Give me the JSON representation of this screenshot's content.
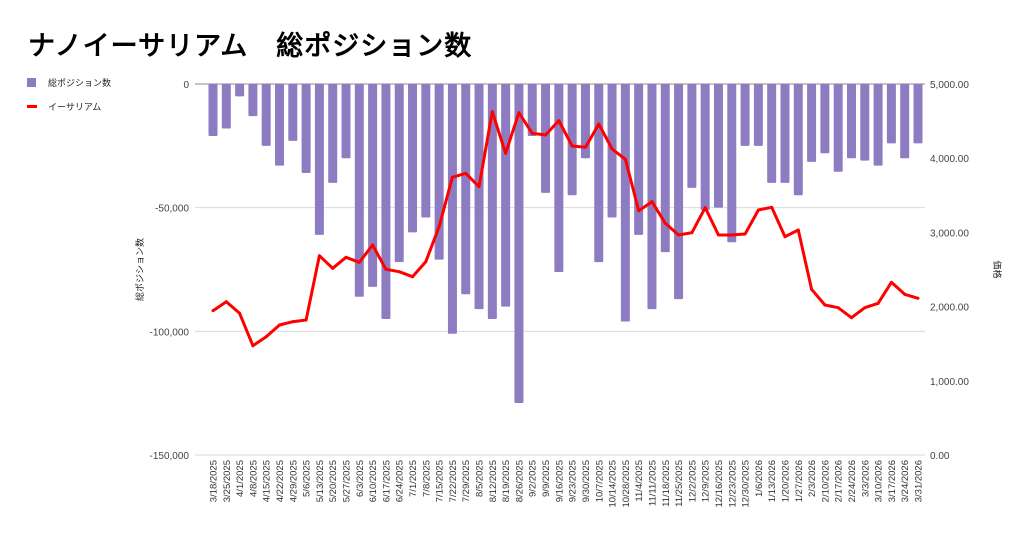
{
  "chart_data": {
    "type": "bar+line",
    "title": "ナノイーサリアム　総ポジション数",
    "xlabel": "",
    "ylabel": "総ポジション数",
    "y2label": "価格",
    "ylim": [
      -150000,
      0
    ],
    "y2lim": [
      0,
      5000
    ],
    "yticks": [
      "0",
      "-50,000",
      "-100,000",
      "-150,000"
    ],
    "y2ticks": [
      "5,000.00",
      "4,000.00",
      "3,000.00",
      "2,000.00",
      "1,000.00",
      "0.00"
    ],
    "legend_position": "left",
    "grid": true,
    "categories": [
      "3/18/2025",
      "3/25/2025",
      "4/1/2025",
      "4/8/2025",
      "4/15/2025",
      "4/22/2025",
      "4/29/2025",
      "5/6/2025",
      "5/13/2025",
      "5/20/2025",
      "5/27/2025",
      "6/3/2025",
      "6/10/2025",
      "6/17/2025",
      "6/24/2025",
      "7/1/2025",
      "7/8/2025",
      "7/15/2025",
      "7/22/2025",
      "7/29/2025",
      "8/5/2025",
      "8/12/2025",
      "8/19/2025",
      "8/26/2025",
      "9/2/2025",
      "9/9/2025",
      "9/16/2025",
      "9/23/2025",
      "9/30/2025",
      "10/7/2025",
      "10/14/2025",
      "10/28/2025",
      "11/4/2025",
      "11/11/2025",
      "11/18/2025",
      "11/25/2025",
      "12/2/2025",
      "12/9/2025",
      "12/16/2025",
      "12/23/2025",
      "12/30/2025",
      "1/6/2026",
      "1/13/2026",
      "1/20/2026",
      "1/27/2026",
      "2/3/2026",
      "2/10/2026",
      "2/17/2026",
      "2/24/2026",
      "3/3/2026",
      "3/10/2026",
      "3/17/2026",
      "3/24/2026",
      "3/31/2026"
    ],
    "series": [
      {
        "name": "総ポジション数",
        "type": "bar",
        "axis": "left",
        "color": "#8e7cc3",
        "values": [
          -21000,
          -18000,
          -5000,
          -13000,
          -25000,
          -33000,
          -23000,
          -36000,
          -61000,
          -40000,
          -30000,
          -86000,
          -82000,
          -95000,
          -72000,
          -60000,
          -54000,
          -71000,
          -101000,
          -85000,
          -91000,
          -95000,
          -90000,
          -129000,
          -21000,
          -44000,
          -76000,
          -45000,
          -30000,
          -72000,
          -54000,
          -96000,
          -61000,
          -91000,
          -68000,
          -87000,
          -42000,
          -51000,
          -50000,
          -64000,
          -25000,
          -25000,
          -40000,
          -40000,
          -45000,
          -31500,
          -28000,
          -35500,
          -30000,
          -31000,
          -33000,
          -24000,
          -30000,
          -24000
        ]
      },
      {
        "name": "イーサリアム",
        "type": "line",
        "axis": "right",
        "color": "#ff0000",
        "values": [
          1945,
          2066,
          1910,
          1473,
          1594,
          1752,
          1797,
          1820,
          2686,
          2516,
          2664,
          2597,
          2830,
          2503,
          2470,
          2403,
          2605,
          3077,
          3742,
          3796,
          3616,
          4627,
          4066,
          4613,
          4335,
          4313,
          4505,
          4164,
          4147,
          4461,
          4124,
          3985,
          3292,
          3414,
          3122,
          2965,
          2996,
          3333,
          2965,
          2965,
          2978,
          3302,
          3338,
          2942,
          3032,
          2233,
          2022,
          1985,
          1850,
          1985,
          2044,
          2327,
          2166,
          2112
        ]
      }
    ]
  }
}
